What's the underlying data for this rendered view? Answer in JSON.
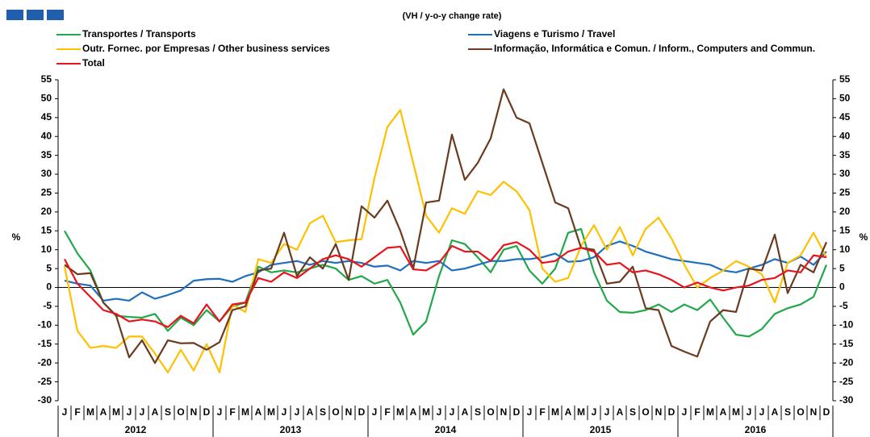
{
  "chart_data": {
    "type": "line",
    "subtitle": "(VH / y-o-y change rate)",
    "y_label": "%",
    "y2_label": "%",
    "categories": [
      "J",
      "F",
      "M",
      "A",
      "M",
      "J",
      "J",
      "A",
      "S",
      "O",
      "N",
      "D",
      "J",
      "F",
      "M",
      "A",
      "M",
      "J",
      "J",
      "A",
      "S",
      "O",
      "N",
      "D",
      "J",
      "F",
      "M",
      "A",
      "M",
      "J",
      "J",
      "A",
      "S",
      "O",
      "N",
      "D",
      "J",
      "F",
      "M",
      "A",
      "M",
      "J",
      "J",
      "A",
      "S",
      "O",
      "N",
      "D",
      "J",
      "F",
      "M",
      "A",
      "M",
      "J",
      "J",
      "A",
      "S",
      "O",
      "N",
      "D"
    ],
    "years": [
      "2012",
      "2013",
      "2014",
      "2015",
      "2016"
    ],
    "ylim": [
      -30,
      55
    ],
    "yticks": [
      -30,
      -25,
      -20,
      -15,
      -10,
      -5,
      0,
      5,
      10,
      15,
      20,
      25,
      30,
      35,
      40,
      45,
      50,
      55
    ],
    "series": [
      {
        "name": "Transportes / Transports",
        "color": "#21a84a",
        "values": [
          15,
          9,
          4.5,
          -4,
          -7.5,
          -7.8,
          -8,
          -7,
          -11.5,
          -8,
          -10,
          -6,
          -9,
          -5,
          -4,
          5.5,
          4,
          4.5,
          4,
          5,
          6,
          5,
          2,
          3,
          1,
          2,
          -4,
          -12.5,
          -9,
          3,
          12.5,
          11.5,
          8,
          4,
          10,
          11,
          4.5,
          1,
          5,
          14.5,
          15.5,
          4,
          -3.5,
          -6.5,
          -6.7,
          -6,
          -4.5,
          -6.5,
          -4.5,
          -6,
          -3.2,
          -8,
          -12.5,
          -13,
          -11,
          -7,
          -5.5,
          -4.5,
          -2.5,
          6
        ]
      },
      {
        "name": "Viagens e Turismo / Travel",
        "color": "#1f6fbf",
        "values": [
          1.8,
          1,
          0.5,
          -3.5,
          -3,
          -3.5,
          -1.3,
          -3,
          -2,
          -0.8,
          1.8,
          2.2,
          2.3,
          1.5,
          3,
          4,
          6,
          6.5,
          7,
          6,
          7,
          6.5,
          7,
          6.5,
          5.5,
          5.8,
          4.5,
          7,
          6.5,
          7,
          4.5,
          5,
          6,
          7,
          7,
          7.5,
          7.5,
          8,
          9,
          6.8,
          7,
          8,
          11,
          12.2,
          11,
          9.5,
          8.5,
          7.5,
          7,
          6.5,
          6,
          4.5,
          4,
          5,
          6,
          7.5,
          6.5,
          8.2,
          6,
          9.5
        ]
      },
      {
        "name": "Outr. Fornec. por Empresas / Other business services",
        "color": "#ffc000",
        "values": [
          5.5,
          -11.5,
          -16,
          -15.5,
          -16,
          -13,
          -13,
          -17.5,
          -22.5,
          -16.5,
          -22,
          -15,
          -22.5,
          -4.5,
          -6.5,
          7.5,
          6.5,
          11.5,
          10,
          17,
          19,
          12,
          12.5,
          12.8,
          29,
          42.5,
          47,
          33,
          19,
          14.5,
          21,
          19.5,
          25.5,
          24.5,
          28,
          25.5,
          20.5,
          5,
          1.5,
          2.5,
          11,
          16.5,
          10,
          16,
          8.5,
          15.5,
          18.5,
          13,
          6,
          0,
          2.5,
          4.5,
          7,
          5.5,
          3.5,
          -4,
          6.5,
          8.5,
          14.5,
          8
        ]
      },
      {
        "name": "Informação, Informática e Comun. / Inform., Computers and Commun.",
        "color": "#6b3a1f",
        "values": [
          6,
          3.5,
          3.8,
          -4,
          -7.5,
          -18.5,
          -14,
          -20,
          -14,
          -14.8,
          -14.7,
          -16.5,
          -14.5,
          -6,
          -5,
          4.5,
          5,
          14.5,
          3,
          8,
          5,
          11.5,
          2,
          21.5,
          18.5,
          23,
          15,
          5,
          22.5,
          23,
          40.5,
          28.5,
          33,
          39.5,
          52.5,
          45,
          43.5,
          33,
          22.5,
          21,
          10.5,
          10,
          1,
          1.5,
          5.5,
          -5.5,
          -6,
          -15.5,
          -17,
          -18.3,
          -9,
          -6,
          -6.5,
          5,
          4.5,
          14,
          -1.5,
          6,
          4,
          12
        ]
      },
      {
        "name": "Total",
        "color": "#e8141b",
        "values": [
          7.5,
          1,
          -2.5,
          -6,
          -7,
          -9,
          -8.5,
          -9,
          -10.5,
          -7.5,
          -9.5,
          -4.5,
          -9,
          -4.5,
          -4,
          2.5,
          1.5,
          4,
          2.5,
          5,
          7.5,
          8.5,
          7.5,
          5.5,
          8,
          10.5,
          10.8,
          4.8,
          4.5,
          6.5,
          11,
          9.5,
          9.5,
          7,
          11.2,
          12,
          10,
          6.5,
          7,
          9.5,
          10.5,
          9.5,
          6,
          6.5,
          4,
          4.5,
          3.5,
          2,
          0,
          1.3,
          0,
          -0.8,
          0,
          0.5,
          2,
          2.5,
          4.5,
          4,
          8.5,
          8
        ]
      }
    ]
  }
}
